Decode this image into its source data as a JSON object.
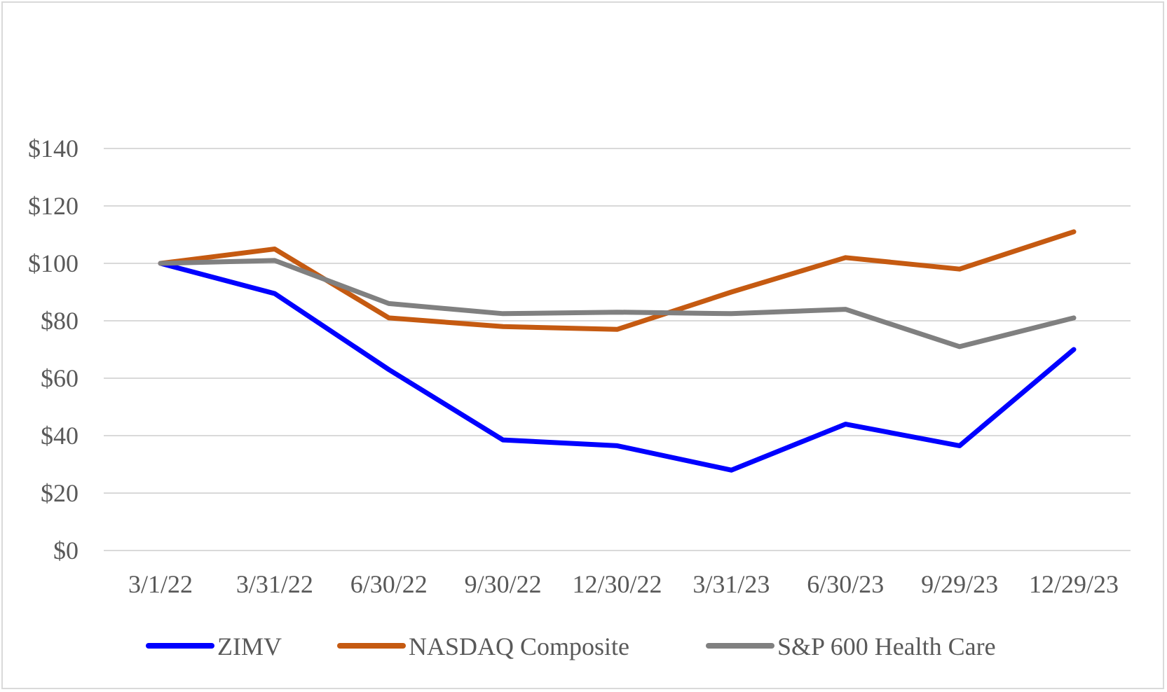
{
  "chart_data": {
    "type": "line",
    "title": "",
    "xlabel": "",
    "ylabel": "",
    "categories": [
      "3/1/22",
      "3/31/22",
      "6/30/22",
      "9/30/22",
      "12/30/22",
      "3/31/23",
      "6/30/23",
      "9/29/23",
      "12/29/23"
    ],
    "y_tick_labels": [
      "$0",
      "$20",
      "$40",
      "$60",
      "$80",
      "$100",
      "$120",
      "$140"
    ],
    "y_ticks": [
      0,
      20,
      40,
      60,
      80,
      100,
      120,
      140
    ],
    "ylim": [
      0,
      140
    ],
    "grid": true,
    "legend_position": "bottom",
    "series": [
      {
        "name": "ZIMV",
        "color": "#0000ff",
        "values": [
          100,
          89.5,
          63,
          38.5,
          36.5,
          28,
          44,
          36.5,
          70
        ]
      },
      {
        "name": "NASDAQ Composite",
        "color": "#c55a11",
        "values": [
          100,
          105,
          81,
          78,
          77,
          90,
          102,
          98,
          111
        ]
      },
      {
        "name": "S&P 600 Health Care",
        "color": "#808080",
        "values": [
          100,
          101,
          86,
          82.5,
          83,
          82.5,
          84,
          71,
          81
        ]
      }
    ]
  }
}
